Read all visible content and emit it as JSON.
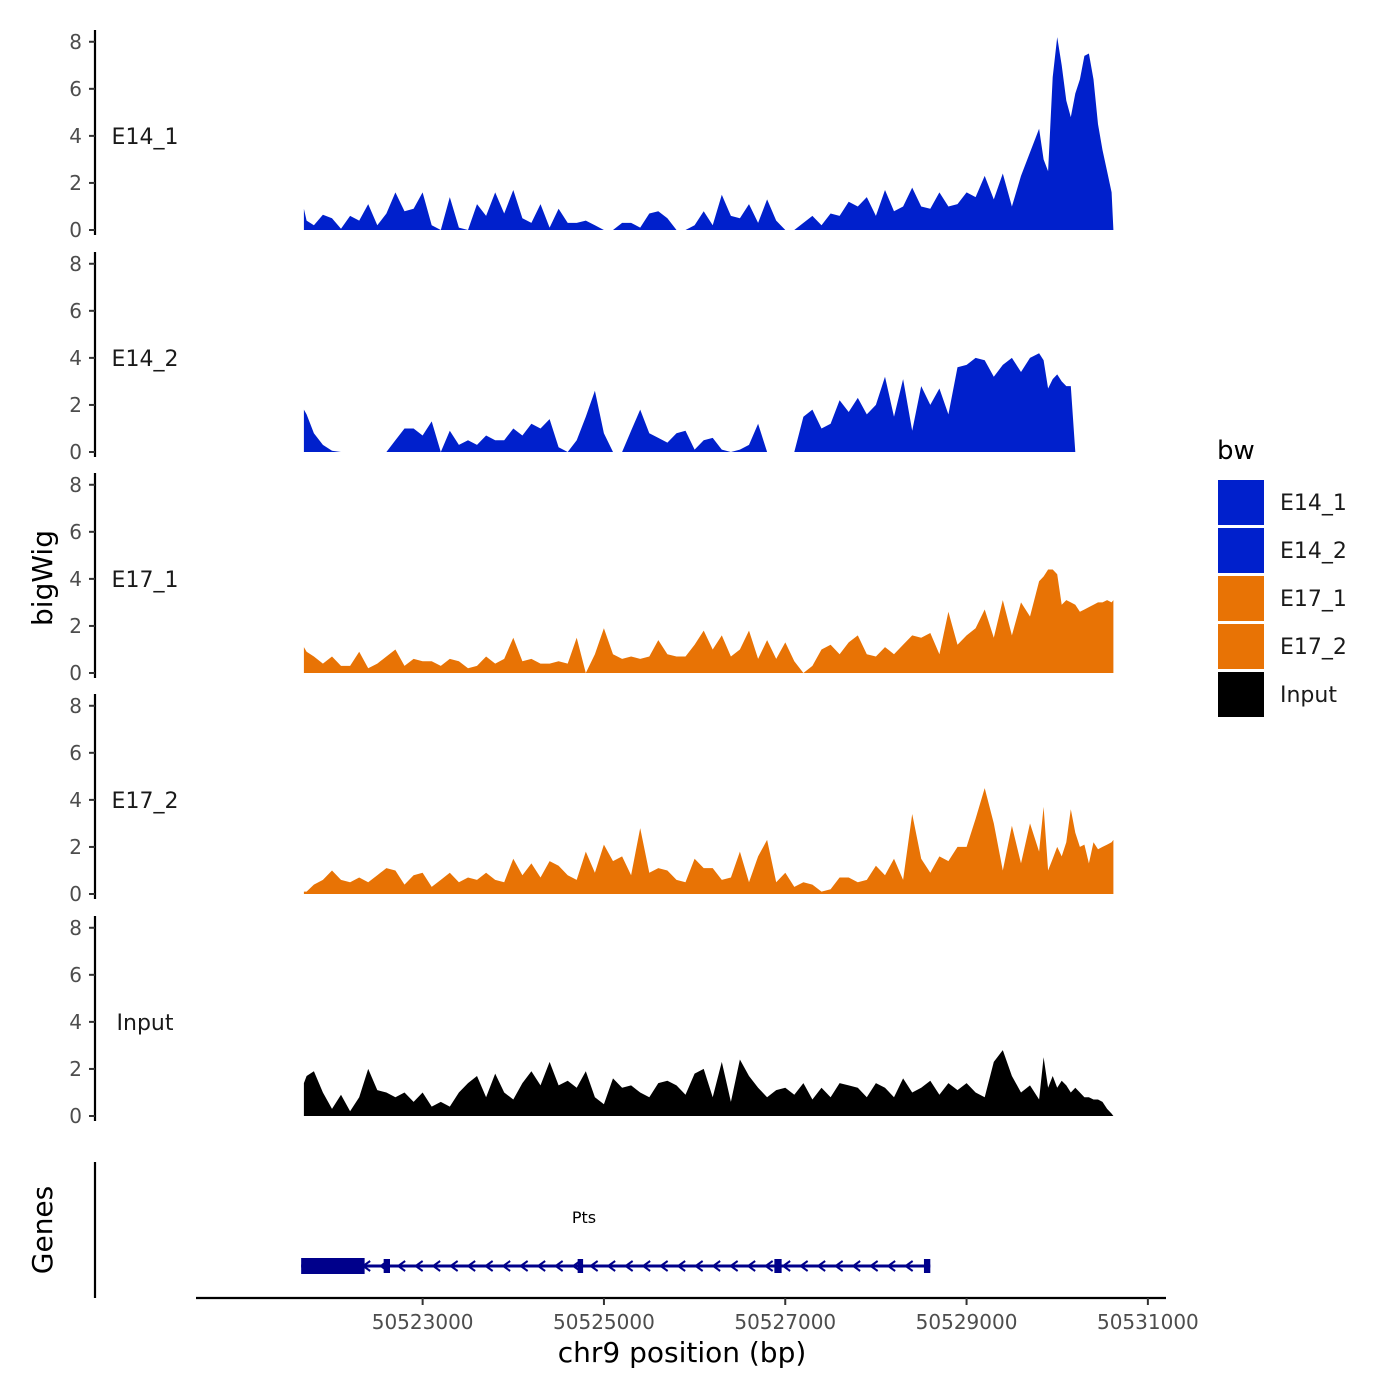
{
  "chart_data": {
    "type": "area",
    "chromosome": "chr9",
    "xlabel": "chr9 position (bp)",
    "ylabel": "bigWig",
    "gene_panel_label": "Genes",
    "xlim": [
      50520500,
      50531200
    ],
    "ylim": [
      0,
      8.5
    ],
    "x_ticks": [
      50523000,
      50525000,
      50527000,
      50529000,
      50531000
    ],
    "x_tick_labels": [
      "50523000",
      "50525000",
      "50527000",
      "50529000",
      "50531000"
    ],
    "y_ticks": [
      0,
      2,
      4,
      6,
      8
    ],
    "y_tick_labels": [
      "0",
      "2",
      "4",
      "6",
      "8"
    ],
    "region": [
      50521690,
      50530620
    ],
    "legend": {
      "title": "bw",
      "entries": [
        {
          "name": "E14_1",
          "color": "#0020CC"
        },
        {
          "name": "E14_2",
          "color": "#0020CC"
        },
        {
          "name": "E17_1",
          "color": "#E87305"
        },
        {
          "name": "E17_2",
          "color": "#E87305"
        },
        {
          "name": "Input",
          "color": "#000000"
        }
      ]
    },
    "series": [
      {
        "name": "E14_1",
        "color": "#0020CC",
        "x": [
          50521690,
          50521720,
          50521800,
          50521900,
          50522000,
          50522100,
          50522200,
          50522300,
          50522400,
          50522500,
          50522600,
          50522700,
          50522800,
          50522900,
          50523000,
          50523100,
          50523200,
          50523300,
          50523400,
          50523500,
          50523600,
          50523700,
          50523800,
          50523900,
          50524000,
          50524100,
          50524200,
          50524300,
          50524400,
          50524500,
          50524600,
          50524700,
          50524800,
          50524900,
          50525000,
          50525100,
          50525200,
          50525300,
          50525400,
          50525500,
          50525600,
          50525700,
          50525800,
          50525900,
          50526000,
          50526100,
          50526200,
          50526300,
          50526400,
          50526500,
          50526600,
          50526700,
          50526800,
          50526900,
          50527000,
          50527100,
          50527200,
          50527300,
          50527400,
          50527500,
          50527600,
          50527700,
          50527800,
          50527900,
          50528000,
          50528100,
          50528200,
          50528300,
          50528400,
          50528500,
          50528600,
          50528700,
          50528800,
          50528900,
          50529000,
          50529100,
          50529200,
          50529300,
          50529400,
          50529500,
          50529600,
          50529700,
          50529800,
          50529850,
          50529900,
          50529950,
          50530000,
          50530050,
          50530100,
          50530150,
          50530200,
          50530250,
          50530300,
          50530350,
          50530400,
          50530450,
          50530500,
          50530550,
          50530600,
          50530620
        ],
        "y": [
          0.9,
          0.4,
          0.2,
          0.65,
          0.5,
          0.05,
          0.6,
          0.4,
          1.1,
          0.2,
          0.7,
          1.6,
          0.8,
          0.9,
          1.6,
          0.2,
          0.0,
          1.4,
          0.1,
          0.0,
          1.1,
          0.6,
          1.6,
          0.7,
          1.7,
          0.5,
          0.3,
          1.1,
          0.1,
          0.9,
          0.3,
          0.3,
          0.4,
          0.2,
          0.0,
          0.0,
          0.3,
          0.3,
          0.1,
          0.7,
          0.8,
          0.5,
          0.0,
          0.0,
          0.2,
          0.8,
          0.2,
          1.5,
          0.6,
          0.5,
          1.1,
          0.3,
          1.3,
          0.4,
          0.0,
          0.0,
          0.3,
          0.6,
          0.2,
          0.7,
          0.6,
          1.2,
          1.0,
          1.4,
          0.6,
          1.7,
          0.8,
          1.0,
          1.8,
          1.0,
          0.9,
          1.6,
          1.0,
          1.1,
          1.6,
          1.4,
          2.3,
          1.3,
          2.4,
          1.0,
          2.3,
          3.3,
          4.3,
          3.0,
          2.5,
          6.5,
          8.2,
          7.0,
          5.5,
          4.8,
          5.8,
          6.4,
          7.4,
          7.5,
          6.4,
          4.5,
          3.4,
          2.5,
          1.6,
          0.0
        ]
      },
      {
        "name": "E14_2",
        "color": "#0020CC",
        "x": [
          50521690,
          50521720,
          50521800,
          50521900,
          50522000,
          50522100,
          50522200,
          50522300,
          50522400,
          50522500,
          50522600,
          50522700,
          50522800,
          50522900,
          50523000,
          50523100,
          50523200,
          50523300,
          50523400,
          50523500,
          50523600,
          50523700,
          50523800,
          50523900,
          50524000,
          50524100,
          50524200,
          50524300,
          50524400,
          50524500,
          50524600,
          50524700,
          50524800,
          50524900,
          50525000,
          50525100,
          50525200,
          50525300,
          50525400,
          50525500,
          50525600,
          50525700,
          50525800,
          50525900,
          50526000,
          50526100,
          50526200,
          50526300,
          50526400,
          50526500,
          50526600,
          50526700,
          50526800,
          50526900,
          50527000,
          50527100,
          50527200,
          50527300,
          50527400,
          50527500,
          50527600,
          50527700,
          50527800,
          50527900,
          50528000,
          50528100,
          50528200,
          50528300,
          50528400,
          50528500,
          50528600,
          50528700,
          50528800,
          50528900,
          50529000,
          50529100,
          50529200,
          50529300,
          50529400,
          50529500,
          50529600,
          50529700,
          50529800,
          50529850,
          50529900,
          50529950,
          50530000,
          50530050,
          50530100,
          50530150,
          50530200,
          50530250,
          50530300,
          50530350,
          50530400,
          50530450,
          50530500,
          50530550,
          50530600,
          50530620
        ],
        "y": [
          1.8,
          1.6,
          0.8,
          0.3,
          0.05,
          0.0,
          0.0,
          0.0,
          0.0,
          0.0,
          0.0,
          0.5,
          1.0,
          1.0,
          0.7,
          1.3,
          0.0,
          0.9,
          0.3,
          0.5,
          0.3,
          0.7,
          0.5,
          0.5,
          1.0,
          0.7,
          1.2,
          1.0,
          1.4,
          0.2,
          0.0,
          0.5,
          1.5,
          2.6,
          0.8,
          0.0,
          0.0,
          0.9,
          1.8,
          0.8,
          0.6,
          0.4,
          0.8,
          0.9,
          0.1,
          0.5,
          0.6,
          0.1,
          0.0,
          0.1,
          0.3,
          1.2,
          0.0,
          0.0,
          0.0,
          0.0,
          1.5,
          1.8,
          1.0,
          1.2,
          2.2,
          1.7,
          2.3,
          1.6,
          2.0,
          3.2,
          1.5,
          3.1,
          0.9,
          2.8,
          2.0,
          2.7,
          1.6,
          3.6,
          3.7,
          4.0,
          3.9,
          3.2,
          3.7,
          4.0,
          3.4,
          4.0,
          4.2,
          3.9,
          2.7,
          3.1,
          3.3,
          3.0,
          2.8,
          2.8,
          0.0,
          0.0,
          0.0,
          0.0,
          0.0,
          0.0,
          0.0,
          0.0,
          0.0,
          0.0
        ]
      },
      {
        "name": "E17_1",
        "color": "#E87305",
        "x": [
          50521690,
          50521720,
          50521800,
          50521900,
          50522000,
          50522100,
          50522200,
          50522300,
          50522400,
          50522500,
          50522600,
          50522700,
          50522800,
          50522900,
          50523000,
          50523100,
          50523200,
          50523300,
          50523400,
          50523500,
          50523600,
          50523700,
          50523800,
          50523900,
          50524000,
          50524100,
          50524200,
          50524300,
          50524400,
          50524500,
          50524600,
          50524700,
          50524800,
          50524900,
          50525000,
          50525100,
          50525200,
          50525300,
          50525400,
          50525500,
          50525600,
          50525700,
          50525800,
          50525900,
          50526000,
          50526100,
          50526200,
          50526300,
          50526400,
          50526500,
          50526600,
          50526700,
          50526800,
          50526900,
          50527000,
          50527100,
          50527200,
          50527300,
          50527400,
          50527500,
          50527600,
          50527700,
          50527800,
          50527900,
          50528000,
          50528100,
          50528200,
          50528300,
          50528400,
          50528500,
          50528600,
          50528700,
          50528800,
          50528900,
          50529000,
          50529100,
          50529200,
          50529300,
          50529400,
          50529500,
          50529600,
          50529700,
          50529800,
          50529850,
          50529900,
          50529950,
          50530000,
          50530050,
          50530100,
          50530150,
          50530200,
          50530250,
          50530300,
          50530350,
          50530400,
          50530450,
          50530500,
          50530550,
          50530600,
          50530620
        ],
        "y": [
          1.1,
          0.9,
          0.7,
          0.4,
          0.7,
          0.3,
          0.3,
          0.9,
          0.2,
          0.4,
          0.7,
          1.0,
          0.3,
          0.6,
          0.5,
          0.5,
          0.3,
          0.6,
          0.5,
          0.2,
          0.3,
          0.7,
          0.4,
          0.6,
          1.5,
          0.5,
          0.6,
          0.4,
          0.4,
          0.5,
          0.4,
          1.5,
          0.0,
          0.8,
          1.9,
          0.8,
          0.6,
          0.7,
          0.6,
          0.7,
          1.4,
          0.8,
          0.7,
          0.7,
          1.2,
          1.8,
          1.0,
          1.6,
          0.7,
          1.0,
          1.8,
          0.6,
          1.4,
          0.6,
          1.3,
          0.5,
          0.0,
          0.3,
          1.0,
          1.2,
          0.8,
          1.3,
          1.6,
          0.8,
          0.7,
          1.1,
          0.8,
          1.2,
          1.6,
          1.5,
          1.7,
          0.8,
          2.6,
          1.2,
          1.6,
          1.9,
          2.7,
          1.5,
          3.1,
          1.6,
          3.0,
          2.4,
          3.9,
          4.1,
          4.4,
          4.4,
          4.2,
          2.9,
          3.1,
          3.0,
          2.9,
          2.6,
          2.7,
          2.8,
          2.9,
          3.0,
          3.0,
          3.1,
          3.0,
          3.1
        ]
      },
      {
        "name": "E17_2",
        "color": "#E87305",
        "x": [
          50521690,
          50521720,
          50521800,
          50521900,
          50522000,
          50522100,
          50522200,
          50522300,
          50522400,
          50522500,
          50522600,
          50522700,
          50522800,
          50522900,
          50523000,
          50523100,
          50523200,
          50523300,
          50523400,
          50523500,
          50523600,
          50523700,
          50523800,
          50523900,
          50524000,
          50524100,
          50524200,
          50524300,
          50524400,
          50524500,
          50524600,
          50524700,
          50524800,
          50524900,
          50525000,
          50525100,
          50525200,
          50525300,
          50525400,
          50525500,
          50525600,
          50525700,
          50525800,
          50525900,
          50526000,
          50526100,
          50526200,
          50526300,
          50526400,
          50526500,
          50526600,
          50526700,
          50526800,
          50526900,
          50527000,
          50527100,
          50527200,
          50527300,
          50527400,
          50527500,
          50527600,
          50527700,
          50527800,
          50527900,
          50528000,
          50528100,
          50528200,
          50528300,
          50528400,
          50528500,
          50528600,
          50528700,
          50528800,
          50528900,
          50529000,
          50529100,
          50529200,
          50529300,
          50529400,
          50529500,
          50529600,
          50529700,
          50529800,
          50529850,
          50529900,
          50529950,
          50530000,
          50530050,
          50530100,
          50530150,
          50530200,
          50530250,
          50530300,
          50530350,
          50530400,
          50530450,
          50530500,
          50530550,
          50530600,
          50530620
        ],
        "y": [
          0.1,
          0.1,
          0.4,
          0.6,
          1.0,
          0.6,
          0.5,
          0.7,
          0.5,
          0.8,
          1.1,
          1.0,
          0.4,
          0.8,
          0.9,
          0.3,
          0.6,
          0.9,
          0.5,
          0.7,
          0.6,
          0.9,
          0.6,
          0.5,
          1.5,
          0.8,
          1.3,
          0.7,
          1.4,
          1.2,
          0.8,
          0.6,
          1.8,
          0.9,
          2.1,
          1.4,
          1.6,
          0.8,
          2.8,
          0.9,
          1.1,
          1.0,
          0.6,
          0.5,
          1.5,
          1.1,
          1.1,
          0.6,
          0.7,
          1.8,
          0.5,
          1.6,
          2.3,
          0.5,
          0.9,
          0.3,
          0.5,
          0.4,
          0.1,
          0.2,
          0.7,
          0.7,
          0.5,
          0.6,
          1.2,
          0.8,
          1.5,
          0.6,
          3.4,
          1.5,
          0.9,
          1.6,
          1.4,
          2.0,
          2.0,
          3.2,
          4.5,
          3.0,
          1.0,
          2.9,
          1.3,
          3.0,
          1.8,
          3.7,
          1.0,
          1.5,
          2.0,
          1.6,
          2.2,
          3.6,
          2.6,
          2.0,
          2.1,
          1.3,
          2.2,
          1.9,
          2.0,
          2.1,
          2.2,
          2.3
        ]
      },
      {
        "name": "Input",
        "color": "#000000",
        "x": [
          50521690,
          50521720,
          50521800,
          50521900,
          50522000,
          50522100,
          50522200,
          50522300,
          50522400,
          50522500,
          50522600,
          50522700,
          50522800,
          50522900,
          50523000,
          50523100,
          50523200,
          50523300,
          50523400,
          50523500,
          50523600,
          50523700,
          50523800,
          50523900,
          50524000,
          50524100,
          50524200,
          50524300,
          50524400,
          50524500,
          50524600,
          50524700,
          50524800,
          50524900,
          50525000,
          50525100,
          50525200,
          50525300,
          50525400,
          50525500,
          50525600,
          50525700,
          50525800,
          50525900,
          50526000,
          50526100,
          50526200,
          50526300,
          50526400,
          50526500,
          50526600,
          50526700,
          50526800,
          50526900,
          50527000,
          50527100,
          50527200,
          50527300,
          50527400,
          50527500,
          50527600,
          50527700,
          50527800,
          50527900,
          50528000,
          50528100,
          50528200,
          50528300,
          50528400,
          50528500,
          50528600,
          50528700,
          50528800,
          50528900,
          50529000,
          50529100,
          50529200,
          50529300,
          50529400,
          50529500,
          50529600,
          50529700,
          50529800,
          50529850,
          50529900,
          50529950,
          50530000,
          50530050,
          50530100,
          50530150,
          50530200,
          50530250,
          50530300,
          50530350,
          50530400,
          50530450,
          50530500,
          50530550,
          50530600,
          50530620
        ],
        "y": [
          1.4,
          1.7,
          1.9,
          1.0,
          0.3,
          0.9,
          0.2,
          0.8,
          2.0,
          1.1,
          1.0,
          0.8,
          1.0,
          0.6,
          1.0,
          0.4,
          0.6,
          0.4,
          1.0,
          1.4,
          1.7,
          0.8,
          1.8,
          1.0,
          0.7,
          1.4,
          1.9,
          1.3,
          2.3,
          1.3,
          1.5,
          1.2,
          1.9,
          0.8,
          0.5,
          1.6,
          1.2,
          1.3,
          1.0,
          0.8,
          1.4,
          1.5,
          1.3,
          0.9,
          1.8,
          2.0,
          0.8,
          2.3,
          0.6,
          2.4,
          1.7,
          1.2,
          0.8,
          1.1,
          1.2,
          0.9,
          1.4,
          0.7,
          1.2,
          0.8,
          1.4,
          1.3,
          1.2,
          0.8,
          1.4,
          1.2,
          0.8,
          1.6,
          1.0,
          1.2,
          1.5,
          0.9,
          1.4,
          1.1,
          1.4,
          1.0,
          0.8,
          2.3,
          2.8,
          1.7,
          1.0,
          1.3,
          0.7,
          2.5,
          1.2,
          1.7,
          1.2,
          1.5,
          1.3,
          1.0,
          1.2,
          1.0,
          0.8,
          0.8,
          0.7,
          0.7,
          0.6,
          0.3,
          0.1,
          0.0
        ]
      }
    ],
    "gene": {
      "name": "Pts",
      "strand": "-",
      "color": "#00008B",
      "start": 50521660,
      "end": 50528600,
      "exons": [
        [
          50521660,
          50522360
        ],
        [
          50522570,
          50522640
        ],
        [
          50524710,
          50524770
        ],
        [
          50526880,
          50526960
        ],
        [
          50528530,
          50528600
        ]
      ]
    }
  }
}
